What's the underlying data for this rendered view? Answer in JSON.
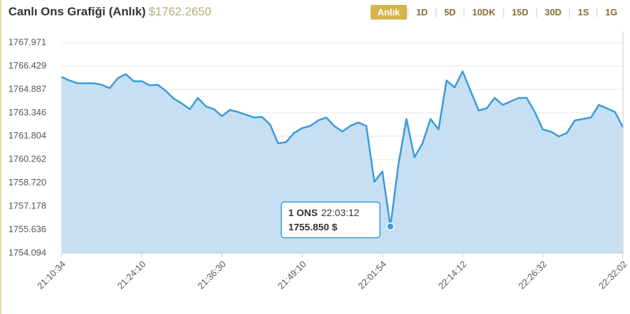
{
  "header": {
    "title": "Canlı Ons Grafiği (Anlık)",
    "price": "$1762.2650",
    "buttons": [
      "Anlık",
      "1D",
      "5D",
      "10DK",
      "15D",
      "30D",
      "1S",
      "1G"
    ],
    "active_button": 0
  },
  "chart_data": {
    "type": "area",
    "categories": [
      "21:10:34",
      null,
      null,
      null,
      null,
      null,
      null,
      null,
      null,
      null,
      "21:24:10",
      null,
      null,
      null,
      null,
      null,
      null,
      null,
      null,
      null,
      "21:36:30",
      null,
      null,
      null,
      null,
      null,
      null,
      null,
      null,
      null,
      "21:49:10",
      null,
      null,
      null,
      null,
      null,
      null,
      null,
      null,
      null,
      "22:01:54",
      null,
      null,
      null,
      null,
      null,
      null,
      null,
      null,
      null,
      "22:14:12",
      null,
      null,
      null,
      null,
      null,
      null,
      null,
      null,
      null,
      "22:26:32",
      null,
      null,
      null,
      null,
      null,
      null,
      null,
      null,
      null,
      "22:32:02"
    ],
    "values": [
      1765.71,
      1765.48,
      1765.3,
      1765.3,
      1765.3,
      1765.2,
      1764.97,
      1765.62,
      1765.9,
      1765.43,
      1765.43,
      1765.16,
      1765.2,
      1764.79,
      1764.28,
      1763.96,
      1763.59,
      1764.33,
      1763.77,
      1763.59,
      1763.13,
      1763.54,
      1763.4,
      1763.22,
      1763.04,
      1763.08,
      1762.57,
      1761.33,
      1761.42,
      1762.02,
      1762.34,
      1762.48,
      1762.85,
      1763.04,
      1762.48,
      1762.11,
      1762.48,
      1762.71,
      1762.48,
      1758.8,
      1759.49,
      1755.85,
      1759.95,
      1762.94,
      1760.41,
      1761.33,
      1762.94,
      1762.25,
      1765.48,
      1765.02,
      1766.08,
      1764.79,
      1763.5,
      1763.64,
      1764.33,
      1763.87,
      1764.1,
      1764.33,
      1764.33,
      1763.4,
      1762.25,
      1762.11,
      1761.79,
      1762.02,
      1762.85,
      1762.94,
      1763.04,
      1763.87,
      1763.64,
      1763.4,
      1762.39
    ],
    "value_labels": [
      null,
      null,
      null,
      null,
      null,
      null,
      null,
      null,
      null,
      null,
      null,
      null,
      null,
      null,
      null,
      null,
      null,
      null,
      null,
      null,
      null,
      null,
      null,
      null,
      null,
      null,
      null,
      null,
      null,
      null,
      null,
      null,
      null,
      null,
      null,
      null,
      null,
      null,
      null,
      null,
      null,
      "1755.850 $",
      null,
      null,
      null,
      null,
      null,
      null,
      null,
      null,
      null,
      null,
      null,
      null,
      null,
      null,
      null,
      null,
      null,
      null,
      null,
      null,
      null,
      null,
      null,
      null,
      null,
      null,
      null,
      null,
      null
    ],
    "tooltip": {
      "series_name": "1 ONS",
      "time": "22:03:12",
      "index": 41
    },
    "color": "#3a9ad9",
    "fill_color": "#c6dff2",
    "ylim": [
      1754.094,
      1768.71
    ],
    "yticks": [
      1754.094,
      1755.636,
      1757.178,
      {
        "value": 1758.72,
        "label": "1758.720"
      },
      1760.262,
      1761.804,
      1763.346,
      1764.887,
      1766.429,
      1767.971
    ],
    "grid": true
  }
}
